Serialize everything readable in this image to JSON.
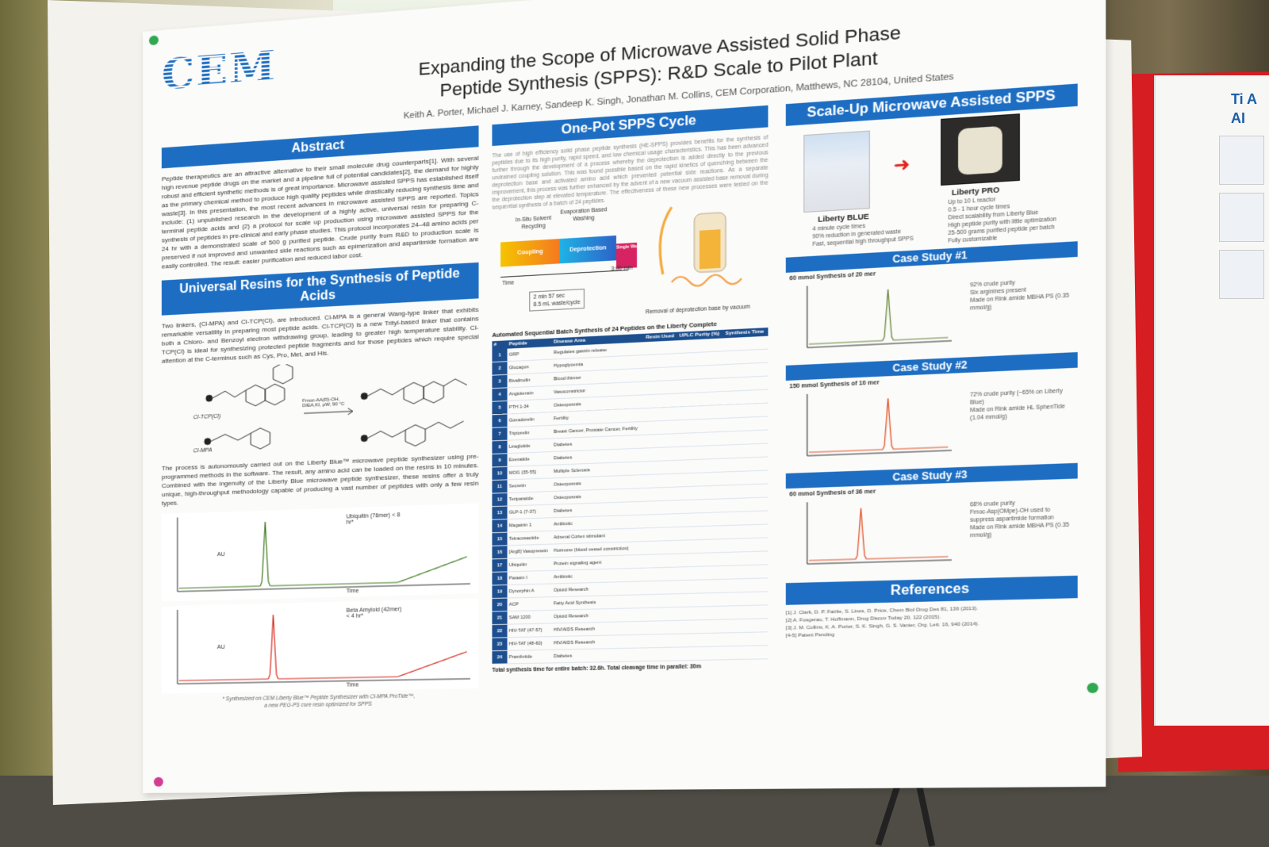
{
  "poster": {
    "logo": "CEM",
    "title_line1": "Expanding the Scope of Microwave Assisted Solid Phase",
    "title_line2": "Peptide Synthesis (SPPS): R&D Scale to Pilot Plant",
    "authors": "Keith A. Porter, Michael J. Karney, Sandeep K. Singh, Jonathan M. Collins, CEM Corporation, Matthews, NC 28104, United States",
    "abstract": {
      "heading": "Abstract",
      "text": "Peptide therapeutics are an attractive alternative to their small molecule drug counterparts[1]. With several high revenue peptide drugs on the market and a pipeline full of potential candidates[2], the demand for highly robust and efficient synthetic methods is of great importance. Microwave assisted SPPS has established itself as the primary chemical method to produce high quality peptides while drastically reducing synthesis time and waste[3]. In this presentation, the most recent advances in microwave assisted SPPS are reported. Topics include: (1) unpublished research in the development of a highly active, universal resin for preparing C-terminal peptide acids and (2) a protocol for scale up production using microwave assisted SPPS for the synthesis of peptides in pre-clinical and early phase studies. This protocol incorporates 24–48 amino acids per 24 hr with a demonstrated scale of 500 g purified peptide. Crude purity from R&D to production scale is preserved if not improved and unwanted side reactions such as epimerization and aspartimide formation are easily controlled. The result: easier purification and reduced labor cost."
    },
    "resins": {
      "heading": "Universal Resins for the Synthesis of Peptide Acids",
      "text": "Two linkers, (Cl-MPA) and Cl-TCP(Cl), are introduced. Cl-MPA is a general Wang-type linker that exhibits remarkable versatility in preparing most peptide acids. Cl-TCP(Cl) is a new Trityl-based linker that contains both a Chloro- and Benzoyl electron withdrawing group, leading to greater high temperature stability. Cl-TCP(Cl) is ideal for synthesizing protected peptide fragments and for those peptides which require special attention at the C-terminus such as Cys, Pro, Met, and His.",
      "scheme_label1": "Cl-TCP(Cl)",
      "scheme_label2": "Cl-MPA",
      "scheme_reagent": "Fmoc-AA(R)-OH, DIEA,KI, μW, 90 °C",
      "process_text": "The process is autonomously carried out on the Liberty Blue™ microwave peptide synthesizer using pre-programmed methods in the software. The result, any amino acid can be loaded on the resins in 10 minutes. Combined with the ingenuity of the Liberty Blue microwave peptide synthesizer, these resins offer a truly unique, high-throughput methodology capable of producing a vast number of peptides with only a few resin types.",
      "footnote_line1": "* Synthesized on CEM Liberty Blue™ Peptide Synthesizer with Cl-MPA ProTide™,",
      "footnote_line2": "a new PEG-PS core resin optimized for SPPS"
    },
    "onepot": {
      "heading": "One-Pot SPPS Cycle",
      "text": "The use of high efficiency solid phase peptide synthesis (HE-SPPS) provides benefits for the synthesis of peptides due to its high purity, rapid speed, and low chemical usage characteristics. This has been advanced further through the development of a process whereby the deprotection is added directly to the previous undrained coupling solution. This was found possible based on the rapid kinetics of quenching between the deprotection base and activated amino acid which prevented potential side reactions. As a separate improvement, this process was further enhanced by the advent of a new vacuum assisted base removal during the deprotection step at elevated temperature. The effectiveness of these new processes were tested on the sequential synthesis of a batch of 24 peptides.",
      "label_insitu": "In-Situ Solvent Recycling",
      "label_evap": "Evaporation Based Washing",
      "stages": [
        "Coupling",
        "Deprotection",
        "Single Wash"
      ],
      "time_label": "Time",
      "time_end": "3:00 min",
      "cycle_time": "2 min 57 sec",
      "waste": "8.5 mL waste/cycle",
      "vacuum_caption": "Removal of deprotection base by vacuum",
      "table_title": "Automated Sequential Batch Synthesis of 24 Peptides on the Liberty Complete",
      "table_headers": [
        "#",
        "Peptide",
        "Disease Area",
        "Resin Used",
        "UPLC Purity (%)",
        "Synthesis Time"
      ],
      "peptides": [
        {
          "n": "1",
          "name": "GRP",
          "area": "Regulates gastrin release"
        },
        {
          "n": "2",
          "name": "Glucagon",
          "area": "Hypoglycemia"
        },
        {
          "n": "3",
          "name": "Bivalirudin",
          "area": "Blood thinner"
        },
        {
          "n": "4",
          "name": "Angiotensin",
          "area": "Vasoconstrictor"
        },
        {
          "n": "5",
          "name": "PTH 1-34",
          "area": "Osteoporosis"
        },
        {
          "n": "6",
          "name": "Gonadorelin",
          "area": "Fertility"
        },
        {
          "n": "7",
          "name": "Triptorelin",
          "area": "Breast Cancer, Prostate Cancer, Fertility"
        },
        {
          "n": "8",
          "name": "Liraglutide",
          "area": "Diabetes"
        },
        {
          "n": "9",
          "name": "Exenatide",
          "area": "Diabetes"
        },
        {
          "n": "10",
          "name": "MOG (35-55)",
          "area": "Multiple Sclerosis"
        },
        {
          "n": "11",
          "name": "Secretin",
          "area": "Osteoporosis"
        },
        {
          "n": "12",
          "name": "Teriparatide",
          "area": "Osteoporosis"
        },
        {
          "n": "13",
          "name": "GLP-1 (7-37)",
          "area": "Diabetes"
        },
        {
          "n": "14",
          "name": "Magainin 1",
          "area": "Antibiotic"
        },
        {
          "n": "15",
          "name": "Tetracosactide",
          "area": "Adrenal Cortex stimulant"
        },
        {
          "n": "16",
          "name": "[Arg8] Vasopressin",
          "area": "Hormone (blood vessel constriction)"
        },
        {
          "n": "17",
          "name": "Ubiquitin",
          "area": "Protein signaling agent"
        },
        {
          "n": "18",
          "name": "Parasin I",
          "area": "Antibiotic"
        },
        {
          "n": "19",
          "name": "Dynorphin A",
          "area": "Opioid Research"
        },
        {
          "n": "20",
          "name": "ACP",
          "area": "Fatty Acid Synthesis"
        },
        {
          "n": "21",
          "name": "SAM 1200",
          "area": "Opioid Research"
        },
        {
          "n": "22",
          "name": "HIV-TAT (47-57)",
          "area": "HIV/AIDS Research"
        },
        {
          "n": "23",
          "name": "HIV-TAT (48-60)",
          "area": "HIV/AIDS Research"
        },
        {
          "n": "24",
          "name": "Pramlintide",
          "area": "Diabetes"
        }
      ],
      "total_line": "Total synthesis time for entire batch: 32.6h. Total cleavage time in parallel: 30m"
    },
    "scaleup": {
      "heading": "Scale-Up Microwave Assisted SPPS",
      "blue_label": "Liberty BLUE",
      "pro_label": "Liberty PRO",
      "blue_bullets": [
        "4 minute cycle times",
        "90% reduction in generated waste",
        "Fast, sequential high throughput SPPS"
      ],
      "pro_bullets": [
        "Up to 10 L reactor",
        "0.5 - 1 hour cycle times",
        "Direct scalability from Liberty Blue",
        "High peptide purity with little optimization",
        "25-500 grams purified peptide per batch",
        "Fully customizable"
      ],
      "cases": [
        {
          "heading": "Case Study #1",
          "sub": "60 mmol Synthesis of 20 mer",
          "bullets": [
            "92% crude purity",
            "Six arginines present",
            "Made on Rink amide MBHA PS (0.35 mmol/g)"
          ]
        },
        {
          "heading": "Case Study #2",
          "sub": "150 mmol Synthesis of 10 mer",
          "bullets": [
            "72% crude purity (~65% on Liberty Blue)",
            "Made on Rink amide HL SphenTide (1.04 mmol/g)"
          ]
        },
        {
          "heading": "Case Study #3",
          "sub": "60 mmol Synthesis of 36 mer",
          "bullets": [
            "68% crude purity",
            "Fmoc-Asp(OMpe)-OH used to suppress aspartimide formation",
            "Made on Rink amide MBHA PS (0.35 mmol/g)"
          ]
        }
      ],
      "references_heading": "References",
      "references": [
        "[1] J. Clark, D. P. Fairlie, S. Lines, D. Price, Chem Biol Drug Des 81, 136 (2013).",
        "[2] A. Fosgerau, T. Hoffmann, Drug Discov Today 20, 122 (2015).",
        "[3] J. M. Collins, K. A. Porter, S. K. Singh, G. S. Vanier, Org. Lett. 16, 940 (2014).",
        "[4-5] Patent Pending"
      ]
    },
    "charts": {
      "ubiquitin_label": "Ubiquitin (76mer) < 8 hr*",
      "amyloid_label": "Beta Amyloid (42mer) < 4 hr*",
      "au": "AU",
      "time": "Time"
    }
  },
  "side_poster": {
    "title": "Ti A AI"
  },
  "colors": {
    "accent": "#1d6ec3",
    "table_header": "#1d4f8f",
    "red_board": "#d51d22"
  }
}
